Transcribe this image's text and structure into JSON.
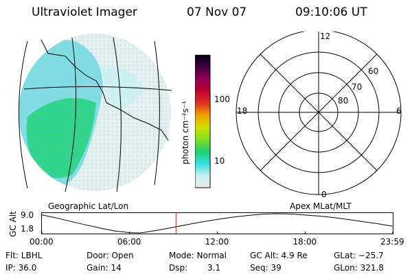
{
  "header": {
    "instrument": "Ultraviolet Imager",
    "date": "07 Nov 07",
    "time": "09:10:06 UT"
  },
  "colorbar": {
    "label": "photon cm⁻²s⁻¹",
    "ticks": [
      {
        "value": 100,
        "label": "100"
      },
      {
        "value": 10,
        "label": "10"
      }
    ],
    "stops": [
      "#e8e8e8",
      "#c8f0f0",
      "#30e0e0",
      "#20d070",
      "#80e020",
      "#d0e000",
      "#f0a000",
      "#e03020",
      "#c00030",
      "#900050",
      "#400040",
      "#000010"
    ]
  },
  "polar_plot": {
    "mlt_labels": {
      "top": "12",
      "left": "18",
      "right": "6",
      "bottom": "0"
    },
    "lat_labels": [
      "60",
      "70",
      "80"
    ]
  },
  "map_labels": {
    "left": "Geographic Lat/Lon",
    "right": "Apex MLat/MLT"
  },
  "altitude_chart": {
    "ylabel": "GC Alt",
    "yticks": [
      "9.0",
      "1.8"
    ],
    "xticks": [
      "00:00",
      "06:00",
      "12:00",
      "18:00",
      "23:59"
    ],
    "marker_time": "09:10"
  },
  "chart_data": {
    "type": "line",
    "title": "",
    "xlabel": "",
    "ylabel": "GC Alt",
    "x": [
      "00:00",
      "01:00",
      "02:00",
      "03:00",
      "04:00",
      "05:00",
      "06:00",
      "06:40",
      "07:00",
      "08:00",
      "09:00",
      "10:00",
      "11:00",
      "12:00",
      "13:00",
      "14:00",
      "15:00",
      "16:00",
      "17:00",
      "18:00",
      "19:00",
      "20:00",
      "21:00",
      "22:00",
      "23:00",
      "23:59"
    ],
    "values": [
      8.6,
      7.4,
      6.1,
      4.8,
      3.6,
      2.5,
      1.9,
      1.8,
      2.0,
      2.9,
      3.9,
      5.0,
      6.0,
      6.9,
      7.7,
      8.3,
      8.8,
      9.0,
      8.9,
      8.5,
      8.1,
      7.5,
      6.8,
      6.0,
      5.2,
      4.3
    ],
    "ylim": [
      1.8,
      9.0
    ],
    "grid": false
  },
  "info": {
    "flt": "Flt: LBHL",
    "ip": "IP: 36.0",
    "door": "Door: Open",
    "gain": "Gain: 14",
    "mode": "Mode: Normal",
    "dsp_label": "Dsp:",
    "dsp_value": "3.1",
    "gc_alt": "GC Alt: 4.9 Re",
    "seq": "Seq: 39",
    "glat": "GLat: −25.7",
    "glon": "GLon: 321.8"
  }
}
